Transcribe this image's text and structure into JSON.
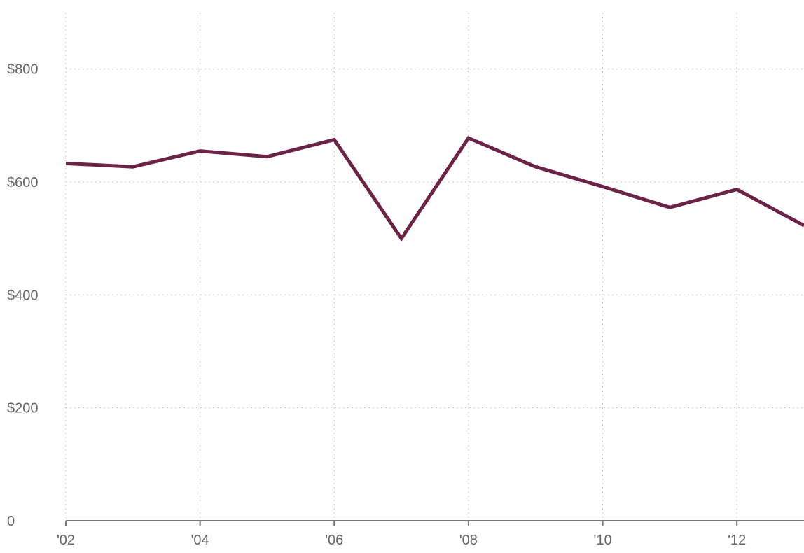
{
  "chart_data": {
    "type": "line",
    "title": "",
    "xlabel": "",
    "ylabel": "",
    "x": [
      2002,
      2003,
      2004,
      2005,
      2006,
      2007,
      2008,
      2009,
      2010,
      2011,
      2012,
      2013
    ],
    "series": [
      {
        "values": [
          633,
          627,
          655,
          645,
          675,
          500,
          678,
          627,
          592,
          555,
          587,
          523
        ]
      }
    ],
    "xlim": [
      2002,
      2013
    ],
    "ylim": [
      0,
      900
    ],
    "x_ticks": [
      {
        "value": 2002,
        "label": "'02"
      },
      {
        "value": 2004,
        "label": "'04"
      },
      {
        "value": 2006,
        "label": "'06"
      },
      {
        "value": 2008,
        "label": "'08"
      },
      {
        "value": 2010,
        "label": "'10"
      },
      {
        "value": 2012,
        "label": "'12"
      }
    ],
    "y_ticks": [
      {
        "value": 0,
        "label": "0"
      },
      {
        "value": 200,
        "label": "$200"
      },
      {
        "value": 400,
        "label": "$400"
      },
      {
        "value": 600,
        "label": "$600"
      },
      {
        "value": 800,
        "label": "$800"
      }
    ],
    "grid": true,
    "legend": "none",
    "colors": {
      "series": "#6b2347",
      "grid": "#c8c8c8",
      "axis": "#777777",
      "text": "#666666"
    }
  }
}
